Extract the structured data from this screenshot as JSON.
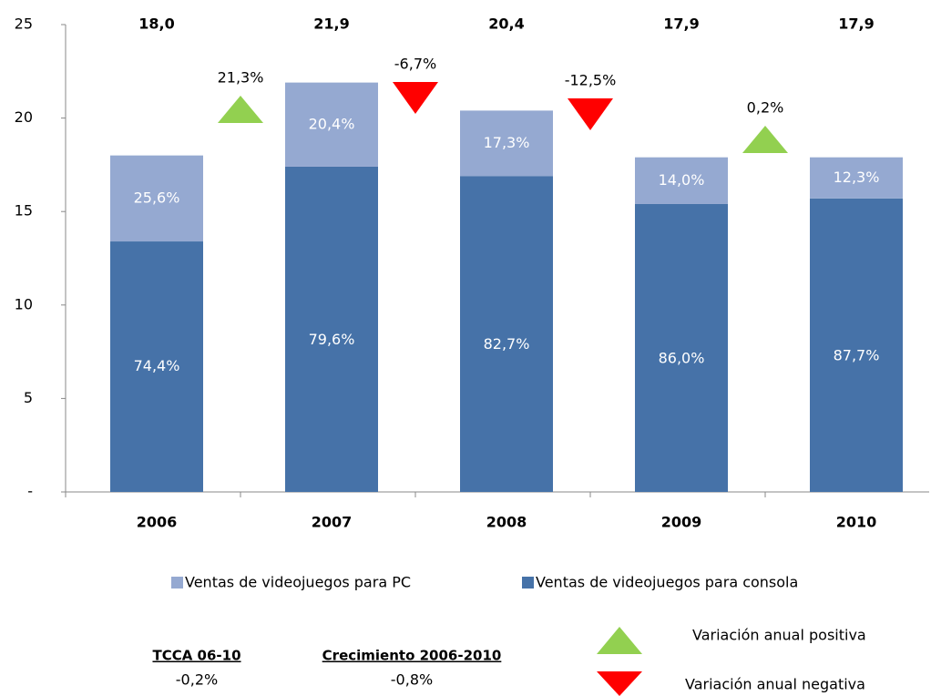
{
  "chart_data": {
    "type": "stacked_bar",
    "categories": [
      "2006",
      "2007",
      "2008",
      "2009",
      "2010"
    ],
    "ylim": [
      0,
      25
    ],
    "yticks": [
      {
        "value": 0,
        "label": "-"
      },
      5,
      10,
      15,
      20,
      25
    ],
    "series": [
      {
        "name": "Ventas de videojuegos para consola",
        "color": "#4672a8",
        "values": [
          13.4,
          17.4,
          16.9,
          15.4,
          15.7
        ],
        "shares": [
          74.4,
          79.6,
          82.7,
          86.0,
          87.7
        ],
        "share_labels": [
          "74,4%",
          "79,6%",
          "82,7%",
          "86,0%",
          "87,7%"
        ]
      },
      {
        "name": "Ventas de videojuegos para PC",
        "color": "#95a9d1",
        "values": [
          4.6,
          4.5,
          3.5,
          2.5,
          2.2
        ],
        "shares": [
          25.6,
          20.4,
          17.3,
          14.0,
          12.3
        ],
        "share_labels": [
          "25,6%",
          "20,4%",
          "17,3%",
          "14,0%",
          "12,3%"
        ]
      }
    ],
    "totals": [
      18.0,
      21.9,
      20.4,
      17.9,
      17.9
    ],
    "total_labels": [
      "18,0",
      "21,9",
      "20,4",
      "17,9",
      "17,9"
    ],
    "changes": {
      "values": [
        21.3,
        -6.7,
        -12.5,
        0.2
      ],
      "labels": [
        "21,3%",
        "-6,7%",
        "-12,5%",
        "0,2%"
      ],
      "positive_color": "#92d050",
      "negative_color": "#ff0000"
    },
    "change_legend": {
      "positive": "Variación anual positiva",
      "negative": "Variación anual negativa"
    },
    "summary": [
      {
        "title": "TCCA 06-10",
        "value": -0.2,
        "label": "-0,2%"
      },
      {
        "title": "Crecimiento 2006-2010",
        "value": -0.8,
        "label": "-0,8%"
      }
    ]
  }
}
